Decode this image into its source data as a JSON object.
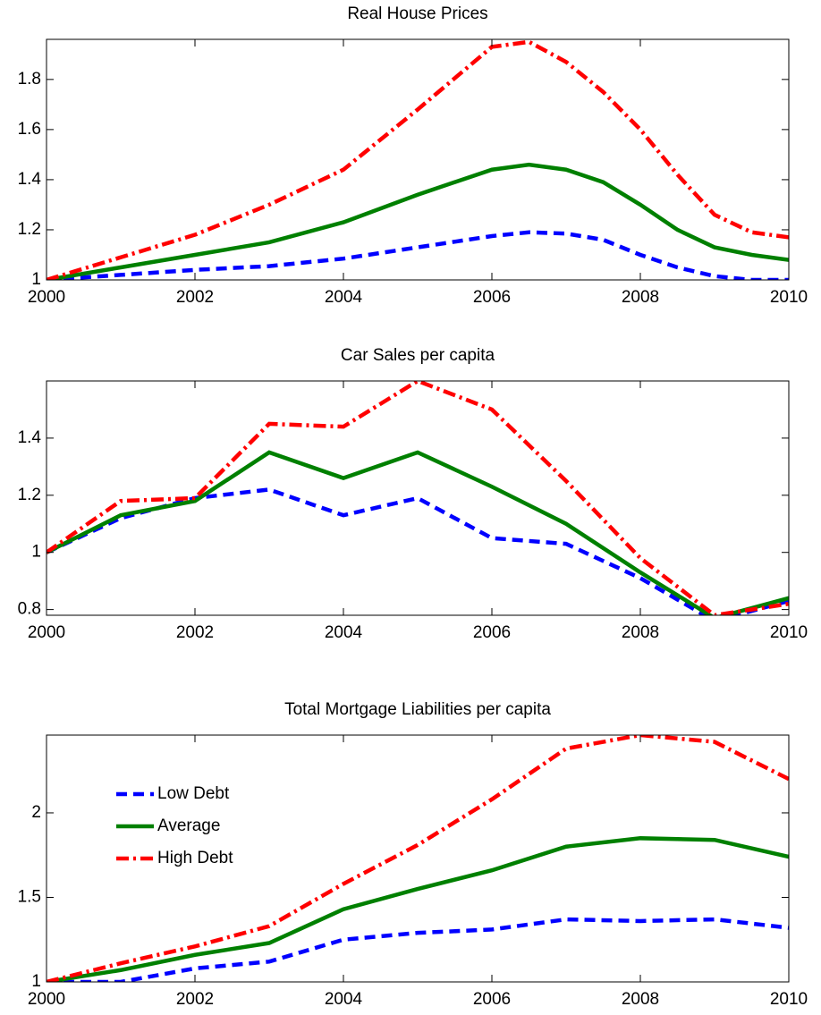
{
  "chart_data": [
    {
      "type": "line",
      "title": "Real House Prices",
      "x": [
        2000,
        2001,
        2002,
        2003,
        2004,
        2005,
        2006,
        2006.5,
        2007,
        2007.5,
        2008,
        2008.5,
        2009,
        2009.5,
        2010
      ],
      "series": [
        {
          "color": "#0000ff",
          "dash": "dashed",
          "values": [
            1.0,
            1.02,
            1.04,
            1.055,
            1.085,
            1.13,
            1.175,
            1.19,
            1.185,
            1.16,
            1.1,
            1.05,
            1.015,
            1.0,
            1.0
          ]
        },
        {
          "color": "#008000",
          "dash": "solid",
          "values": [
            1.0,
            1.05,
            1.1,
            1.15,
            1.23,
            1.34,
            1.44,
            1.46,
            1.44,
            1.39,
            1.3,
            1.2,
            1.13,
            1.1,
            1.08
          ]
        },
        {
          "color": "#ff0000",
          "dash": "dashdot",
          "values": [
            1.0,
            1.09,
            1.18,
            1.3,
            1.44,
            1.68,
            1.93,
            1.95,
            1.87,
            1.75,
            1.6,
            1.42,
            1.26,
            1.19,
            1.17
          ]
        }
      ],
      "xlim": [
        2000,
        2010
      ],
      "xticks": [
        2000,
        2002,
        2004,
        2006,
        2008,
        2010
      ],
      "ylim": [
        1,
        1.96
      ],
      "yticks": [
        1,
        1.2,
        1.4,
        1.6,
        1.8
      ]
    },
    {
      "type": "line",
      "title": "Car Sales per capita",
      "x": [
        2000,
        2001,
        2002,
        2003,
        2004,
        2005,
        2006,
        2007,
        2008,
        2009,
        2010
      ],
      "series": [
        {
          "color": "#0000ff",
          "dash": "dashed",
          "values": [
            1.0,
            1.12,
            1.19,
            1.22,
            1.13,
            1.19,
            1.05,
            1.03,
            0.91,
            0.76,
            0.83
          ]
        },
        {
          "color": "#008000",
          "dash": "solid",
          "values": [
            1.0,
            1.13,
            1.18,
            1.35,
            1.26,
            1.35,
            1.23,
            1.1,
            0.93,
            0.77,
            0.84
          ]
        },
        {
          "color": "#ff0000",
          "dash": "dashdot",
          "values": [
            1.0,
            1.18,
            1.19,
            1.45,
            1.44,
            1.6,
            1.5,
            1.25,
            0.98,
            0.78,
            0.82
          ]
        }
      ],
      "xlim": [
        2000,
        2010
      ],
      "xticks": [
        2000,
        2002,
        2004,
        2006,
        2008,
        2010
      ],
      "ylim": [
        0.78,
        1.6
      ],
      "yticks": [
        0.8,
        1,
        1.2,
        1.4
      ]
    },
    {
      "type": "line",
      "title": "Total Mortgage Liabilities per capita",
      "x": [
        2000,
        2001,
        2002,
        2003,
        2004,
        2005,
        2006,
        2007,
        2008,
        2009,
        2010
      ],
      "series": [
        {
          "name": "Low Debt",
          "color": "#0000ff",
          "dash": "dashed",
          "values": [
            1.0,
            1.0,
            1.08,
            1.12,
            1.25,
            1.29,
            1.31,
            1.37,
            1.36,
            1.37,
            1.32
          ]
        },
        {
          "name": "Average",
          "color": "#008000",
          "dash": "solid",
          "values": [
            1.0,
            1.07,
            1.16,
            1.23,
            1.43,
            1.55,
            1.66,
            1.8,
            1.85,
            1.84,
            1.74
          ]
        },
        {
          "name": "High Debt",
          "color": "#ff0000",
          "dash": "dashdot",
          "values": [
            1.0,
            1.11,
            1.21,
            1.33,
            1.58,
            1.81,
            2.08,
            2.38,
            2.46,
            2.42,
            2.2
          ]
        }
      ],
      "xlim": [
        2000,
        2010
      ],
      "xticks": [
        2000,
        2002,
        2004,
        2006,
        2008,
        2010
      ],
      "ylim": [
        1,
        2.46
      ],
      "yticks": [
        1,
        1.5,
        2
      ],
      "legend": "upper left"
    }
  ]
}
